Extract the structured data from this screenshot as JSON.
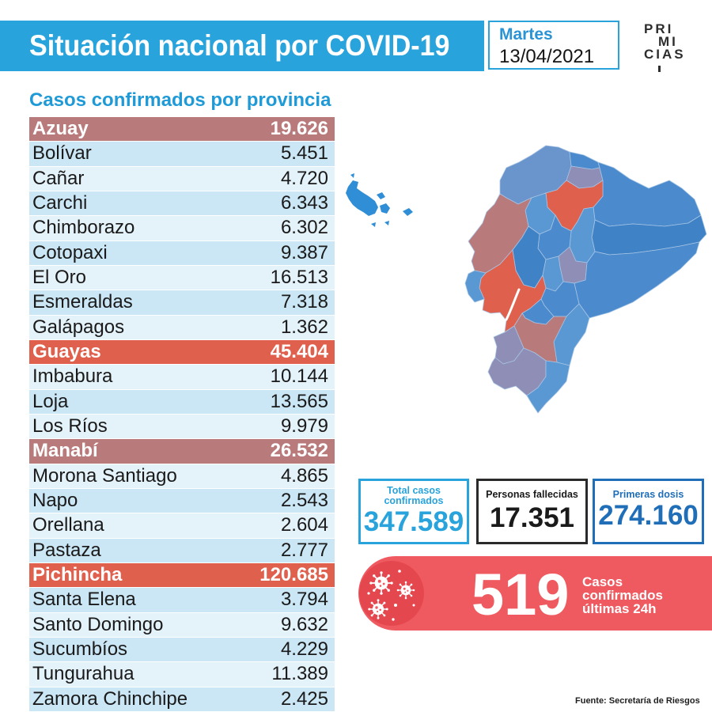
{
  "header": {
    "title": "Situación nacional por COVID-19",
    "day": "Martes",
    "date": "13/04/2021"
  },
  "logo": {
    "lines": [
      "PRI",
      "MI",
      "CIAS"
    ]
  },
  "colors": {
    "header": "#29a3dc",
    "total": "#29a3dc",
    "doses": "#1f6eb7",
    "daily": "#ef5a60"
  },
  "table": {
    "title": "Casos confirmados por provincia",
    "rows": [
      {
        "name": "Azuay",
        "value": "19.626",
        "bg": "#b87a7b"
      },
      {
        "name": "Bolívar",
        "value": "5.451"
      },
      {
        "name": "Cañar",
        "value": "4.720"
      },
      {
        "name": "Carchi",
        "value": "6.343"
      },
      {
        "name": "Chimborazo",
        "value": "6.302"
      },
      {
        "name": "Cotopaxi",
        "value": "9.387"
      },
      {
        "name": "El Oro",
        "value": "16.513"
      },
      {
        "name": "Esmeraldas",
        "value": "7.318"
      },
      {
        "name": "Galápagos",
        "value": "1.362"
      },
      {
        "name": "Guayas",
        "value": "45.404",
        "bg": "#e0604e"
      },
      {
        "name": "Imbabura",
        "value": "10.144"
      },
      {
        "name": "Loja",
        "value": "13.565"
      },
      {
        "name": "Los Ríos",
        "value": "9.979"
      },
      {
        "name": "Manabí",
        "value": "26.532",
        "bg": "#b87a7b"
      },
      {
        "name": "Morona Santiago",
        "value": "4.865"
      },
      {
        "name": "Napo",
        "value": "2.543"
      },
      {
        "name": "Orellana",
        "value": "2.604"
      },
      {
        "name": "Pastaza",
        "value": "2.777"
      },
      {
        "name": "Pichincha",
        "value": "120.685",
        "bg": "#e0604e"
      },
      {
        "name": "Santa Elena",
        "value": "3.794"
      },
      {
        "name": "Santo Domingo",
        "value": "9.632"
      },
      {
        "name": "Sucumbíos",
        "value": "4.229"
      },
      {
        "name": "Tungurahua",
        "value": "11.389"
      },
      {
        "name": "Zamora Chinchipe",
        "value": "2.425"
      }
    ]
  },
  "stats": {
    "total": {
      "label_lines": [
        "Total casos",
        "confirmados"
      ],
      "value": "347.589"
    },
    "deaths": {
      "label": "Personas fallecidas",
      "value": "17.351"
    },
    "doses": {
      "label": "Primeras dosis",
      "value": "274.160"
    }
  },
  "daily": {
    "value": "519",
    "label_lines": [
      "Casos",
      "confirmados",
      "últimas 24h"
    ],
    "icon": "virus-icon"
  },
  "source": "Fuente: Secretaría de Riesgos"
}
